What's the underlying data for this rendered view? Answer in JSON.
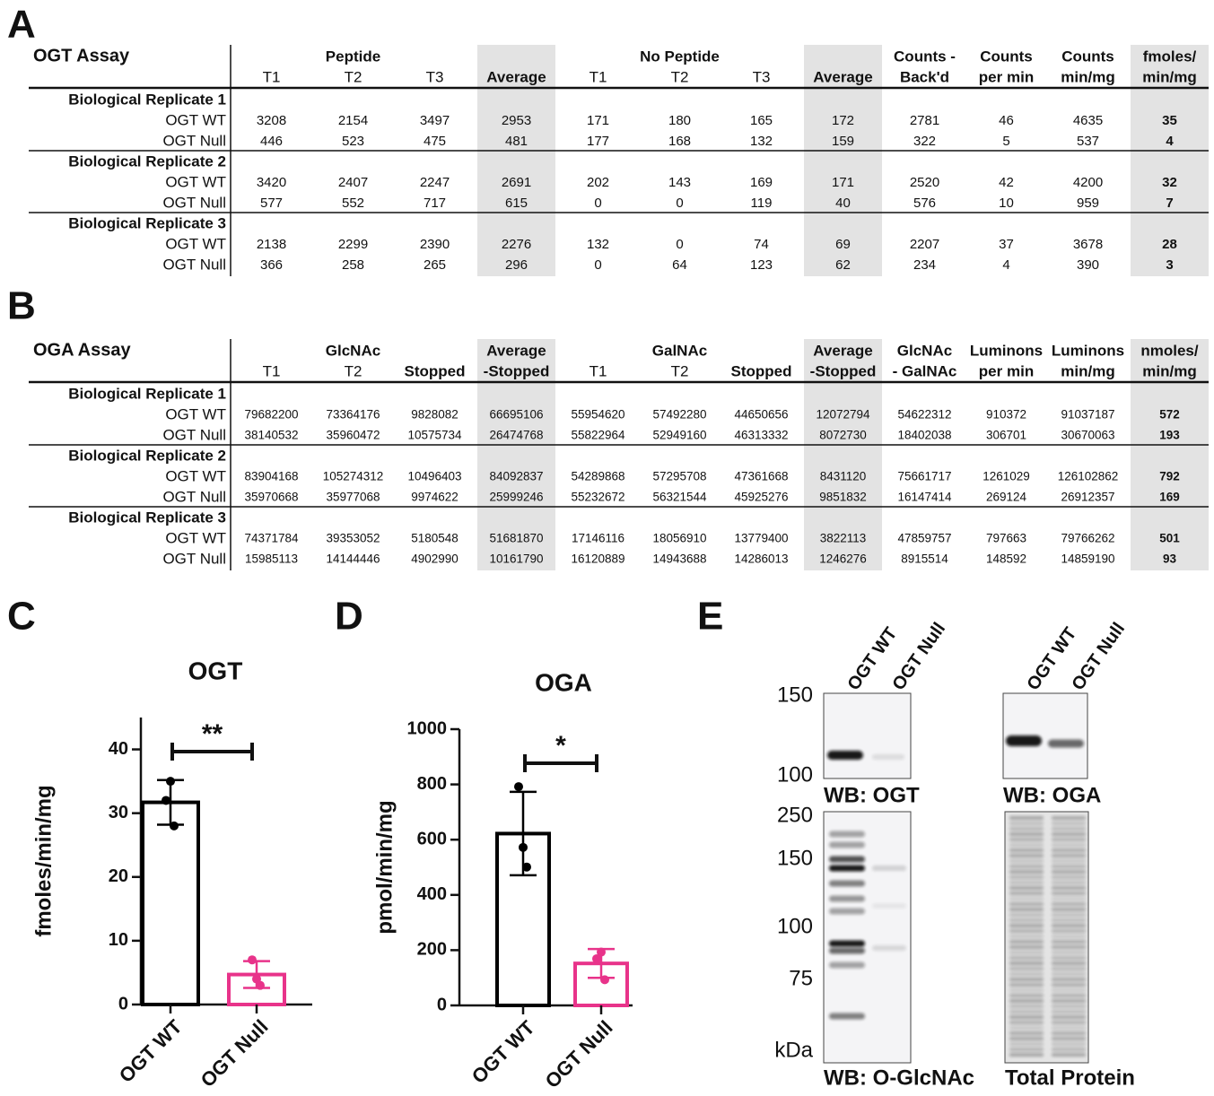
{
  "panel_labels": [
    "A",
    "B",
    "C",
    "D",
    "E"
  ],
  "tables": [
    {
      "title": "OGT Assay",
      "column_groups": [
        {
          "label": "Peptide",
          "columns": [
            [
              "T1"
            ],
            [
              "T2"
            ],
            [
              "T3"
            ]
          ]
        },
        {
          "shaded": true,
          "columns": [
            [
              "Average"
            ]
          ]
        },
        {
          "label": "No Peptide",
          "columns": [
            [
              "T1"
            ],
            [
              "T2"
            ],
            [
              "T3"
            ]
          ]
        },
        {
          "shaded": true,
          "columns": [
            [
              "Average"
            ]
          ]
        },
        {
          "columns": [
            [
              "Counts -",
              "Back'd"
            ],
            [
              "Counts",
              "per min"
            ],
            [
              "Counts",
              "min/mg"
            ]
          ]
        },
        {
          "shaded": true,
          "bold": true,
          "columns": [
            [
              "fmoles/",
              "min/mg"
            ]
          ]
        }
      ],
      "row_groups": [
        {
          "label": "Biological Replicate 1",
          "rows": [
            {
              "label": "OGT WT",
              "values": [
                3208,
                2154,
                3497,
                2953,
                171,
                180,
                165,
                172,
                2781,
                46,
                4635,
                35
              ]
            },
            {
              "label": "OGT Null",
              "values": [
                446,
                523,
                475,
                481,
                177,
                168,
                132,
                159,
                322,
                5,
                537,
                4
              ]
            }
          ]
        },
        {
          "label": "Biological Replicate 2",
          "rows": [
            {
              "label": "OGT WT",
              "values": [
                3420,
                2407,
                2247,
                2691,
                202,
                143,
                169,
                171,
                2520,
                42,
                4200,
                32
              ]
            },
            {
              "label": "OGT Null",
              "values": [
                577,
                552,
                717,
                615,
                0,
                0,
                119,
                40,
                576,
                10,
                959,
                7
              ]
            }
          ]
        },
        {
          "label": "Biological Replicate 3",
          "rows": [
            {
              "label": "OGT WT",
              "values": [
                2138,
                2299,
                2390,
                2276,
                132,
                0,
                74,
                69,
                2207,
                37,
                3678,
                28
              ]
            },
            {
              "label": "OGT Null",
              "values": [
                366,
                258,
                265,
                296,
                0,
                64,
                123,
                62,
                234,
                4,
                390,
                3
              ]
            }
          ]
        }
      ]
    },
    {
      "title": "OGA Assay",
      "column_groups": [
        {
          "label": "GlcNAc",
          "columns": [
            [
              "T1"
            ],
            [
              "T2"
            ],
            [
              "Stopped"
            ]
          ]
        },
        {
          "shaded": true,
          "columns": [
            [
              "Average",
              "-Stopped"
            ]
          ]
        },
        {
          "label": "GalNAc",
          "columns": [
            [
              "T1"
            ],
            [
              "T2"
            ],
            [
              "Stopped"
            ]
          ]
        },
        {
          "shaded": true,
          "columns": [
            [
              "Average",
              "-Stopped"
            ]
          ]
        },
        {
          "columns": [
            [
              "GlcNAc",
              "- GalNAc"
            ],
            [
              "Luminons",
              "per min"
            ],
            [
              "Luminons",
              "min/mg"
            ]
          ]
        },
        {
          "shaded": true,
          "bold": true,
          "columns": [
            [
              "nmoles/",
              "min/mg"
            ]
          ]
        }
      ],
      "row_groups": [
        {
          "label": "Biological Replicate 1",
          "rows": [
            {
              "label": "OGT WT",
              "values": [
                79682200,
                73364176,
                9828082,
                66695106,
                55954620,
                57492280,
                44650656,
                12072794,
                54622312,
                910372,
                91037187,
                572
              ]
            },
            {
              "label": "OGT Null",
              "values": [
                38140532,
                35960472,
                10575734,
                26474768,
                55822964,
                52949160,
                46313332,
                8072730,
                18402038,
                306701,
                30670063,
                193
              ]
            }
          ]
        },
        {
          "label": "Biological Replicate 2",
          "rows": [
            {
              "label": "OGT WT",
              "values": [
                83904168,
                105274312,
                10496403,
                84092837,
                54289868,
                57295708,
                47361668,
                8431120,
                75661717,
                1261029,
                126102862,
                792
              ]
            },
            {
              "label": "OGT Null",
              "values": [
                35970668,
                35977068,
                9974622,
                25999246,
                55232672,
                56321544,
                45925276,
                9851832,
                16147414,
                269124,
                26912357,
                169
              ]
            }
          ]
        },
        {
          "label": "Biological Replicate 3",
          "rows": [
            {
              "label": "OGT WT",
              "values": [
                74371784,
                39353052,
                5180548,
                51681870,
                17146116,
                18056910,
                13779400,
                3822113,
                47859757,
                797663,
                79766262,
                501
              ]
            },
            {
              "label": "OGT Null",
              "values": [
                15985113,
                14144446,
                4902990,
                10161790,
                16120889,
                14943688,
                14286013,
                1246276,
                8915514,
                148592,
                14859190,
                93
              ]
            }
          ]
        }
      ]
    }
  ],
  "chart_data": [
    {
      "type": "bar",
      "title": "OGT",
      "ylabel": "fmoles/min/mg",
      "categories": [
        "OGT WT",
        "OGT Null"
      ],
      "values": [
        31.7,
        4.7
      ],
      "errors": [
        3.5,
        2.1
      ],
      "points": [
        [
          35,
          32,
          28
        ],
        [
          4,
          7,
          3
        ]
      ],
      "colors": [
        "#000000",
        "#e8338a"
      ],
      "ylim": [
        0,
        45
      ],
      "yticks": [
        0,
        10,
        20,
        30,
        40
      ],
      "significance": "**"
    },
    {
      "type": "bar",
      "title": "OGA",
      "ylabel": "pmol/min/mg",
      "categories": [
        "OGT WT",
        "OGT Null"
      ],
      "values": [
        622,
        152
      ],
      "errors": [
        151,
        52
      ],
      "points": [
        [
          572,
          792,
          501
        ],
        [
          193,
          169,
          93
        ]
      ],
      "colors": [
        "#000000",
        "#e8338a"
      ],
      "ylim": [
        0,
        1000
      ],
      "yticks": [
        0,
        200,
        400,
        600,
        800,
        1000
      ],
      "significance": "*"
    }
  ],
  "blots": [
    {
      "caption": "WB: OGT",
      "lanes": [
        "OGT WT",
        "OGT Null"
      ],
      "markers": [
        150,
        100
      ]
    },
    {
      "caption": "WB: OGA",
      "lanes": [
        "OGT WT",
        "OGT Null"
      ]
    },
    {
      "caption": "WB: O-GlcNAc",
      "markers": [
        250,
        150,
        100,
        75
      ],
      "marker_unit": "kDa"
    },
    {
      "caption": "Total Protein"
    }
  ]
}
